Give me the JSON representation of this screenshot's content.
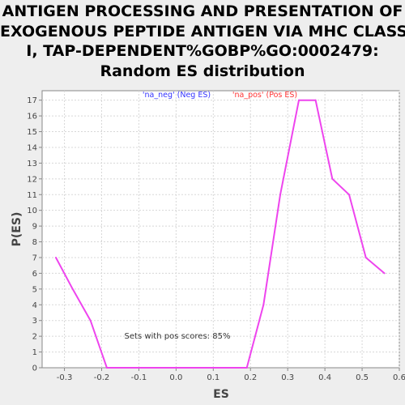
{
  "chart_data": {
    "type": "line",
    "title_lines": [
      "ANTIGEN PROCESSING AND PRESENTATION OF",
      "EXOGENOUS PEPTIDE ANTIGEN VIA MHC CLASS",
      "I, TAP-DEPENDENT%GOBP%GO:0002479:",
      "Random ES distribution"
    ],
    "xlabel": "ES",
    "ylabel": "P(ES)",
    "xlim": [
      -0.36,
      0.6
    ],
    "ylim": [
      0,
      17.6
    ],
    "xticks": [
      -0.3,
      -0.2,
      -0.1,
      0.0,
      0.1,
      0.2,
      0.3,
      0.4,
      0.5,
      0.6
    ],
    "xtick_labels": [
      "-0.3",
      "-0.2",
      "-0.1",
      "0.0",
      "0.1",
      "0.2",
      "0.3",
      "0.4",
      "0.5",
      "0.6"
    ],
    "yticks": [
      0,
      1,
      2,
      3,
      4,
      5,
      6,
      7,
      8,
      9,
      10,
      11,
      12,
      13,
      14,
      15,
      16,
      17
    ],
    "ytick_labels": [
      "0",
      "1",
      "2",
      "3",
      "4",
      "5",
      "6",
      "7",
      "8",
      "9",
      "10",
      "11",
      "12",
      "13",
      "14",
      "15",
      "16",
      "17"
    ],
    "grid": true,
    "legend": [
      {
        "label": "'na_neg' (Neg ES)",
        "color": "#3333ff"
      },
      {
        "label": "'na_pos' (Pos ES)",
        "color": "#ff3333"
      }
    ],
    "annotation": "Sets with pos scores: 85%",
    "series": [
      {
        "color": "#ee44ee",
        "x": [
          -0.323,
          -0.278,
          -0.23,
          -0.186,
          -0.14,
          -0.095,
          -0.05,
          -0.005,
          0.04,
          0.085,
          0.13,
          0.19,
          0.235,
          0.28,
          0.33,
          0.375,
          0.42,
          0.465,
          0.51,
          0.56
        ],
        "y": [
          7,
          5,
          3,
          0,
          0,
          0,
          0,
          0,
          0,
          0,
          0,
          0,
          4,
          11,
          17,
          17,
          12,
          11,
          7,
          6
        ]
      }
    ]
  }
}
